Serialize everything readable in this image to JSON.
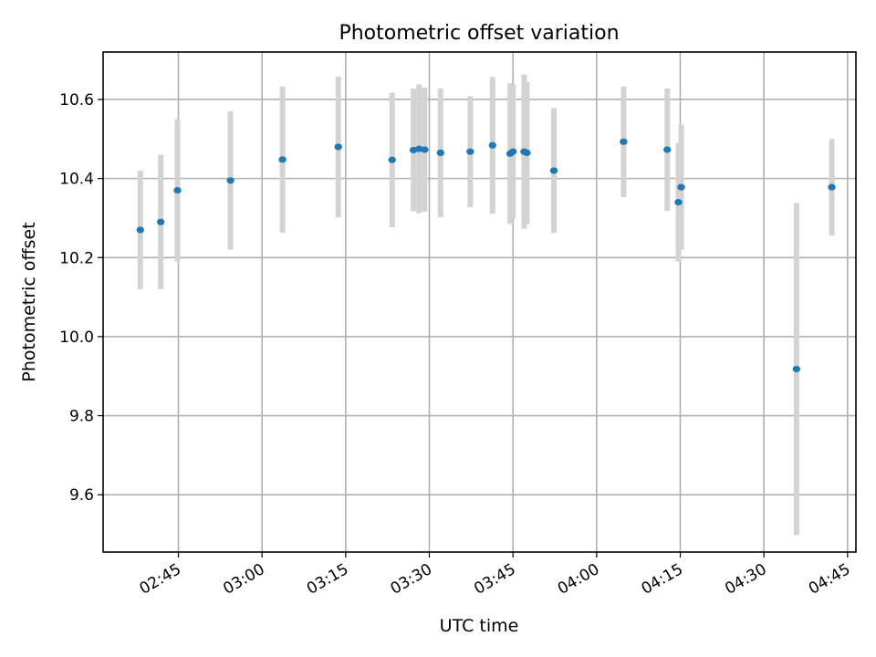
{
  "chart_data": {
    "type": "scatter",
    "title": "Photometric offset variation",
    "xlabel": "UTC time",
    "ylabel": "Photometric offset",
    "xlim": [
      "02:31:30",
      "04:46:30"
    ],
    "ylim": [
      9.455,
      10.72
    ],
    "grid": true,
    "x_ticks": [
      "02:45",
      "03:00",
      "03:15",
      "03:30",
      "03:45",
      "04:00",
      "04:15",
      "04:30",
      "04:45"
    ],
    "y_ticks": [
      "9.6",
      "9.8",
      "10.0",
      "10.2",
      "10.4",
      "10.6"
    ],
    "series": [
      {
        "marker_color": "#1f77b4",
        "errorbar_color": "#d3d3d3",
        "points": [
          {
            "x": "02:38:10",
            "y": 10.27,
            "yerr": 0.15
          },
          {
            "x": "02:41:50",
            "y": 10.29,
            "yerr": 0.17
          },
          {
            "x": "02:44:50",
            "y": 10.37,
            "yerr": 0.18
          },
          {
            "x": "02:54:20",
            "y": 10.395,
            "yerr": 0.175
          },
          {
            "x": "03:03:40",
            "y": 10.448,
            "yerr": 0.185
          },
          {
            "x": "03:13:40",
            "y": 10.48,
            "yerr": 0.178
          },
          {
            "x": "03:23:20",
            "y": 10.447,
            "yerr": 0.17
          },
          {
            "x": "03:27:10",
            "y": 10.472,
            "yerr": 0.155
          },
          {
            "x": "03:28:10",
            "y": 10.475,
            "yerr": 0.163
          },
          {
            "x": "03:29:10",
            "y": 10.473,
            "yerr": 0.157
          },
          {
            "x": "03:32:00",
            "y": 10.465,
            "yerr": 0.163
          },
          {
            "x": "03:37:20",
            "y": 10.468,
            "yerr": 0.14
          },
          {
            "x": "03:41:20",
            "y": 10.484,
            "yerr": 0.173
          },
          {
            "x": "03:44:30",
            "y": 10.463,
            "yerr": 0.178
          },
          {
            "x": "03:45:00",
            "y": 10.468,
            "yerr": 0.17
          },
          {
            "x": "03:47:00",
            "y": 10.468,
            "yerr": 0.195
          },
          {
            "x": "03:47:30",
            "y": 10.465,
            "yerr": 0.18
          },
          {
            "x": "03:52:20",
            "y": 10.42,
            "yerr": 0.158
          },
          {
            "x": "04:04:50",
            "y": 10.493,
            "yerr": 0.14
          },
          {
            "x": "04:12:40",
            "y": 10.473,
            "yerr": 0.155
          },
          {
            "x": "04:14:40",
            "y": 10.34,
            "yerr": 0.15
          },
          {
            "x": "04:15:10",
            "y": 10.378,
            "yerr": 0.158
          },
          {
            "x": "04:35:50",
            "y": 9.918,
            "yerr": 0.42
          },
          {
            "x": "04:42:10",
            "y": 10.378,
            "yerr": 0.122
          }
        ]
      }
    ]
  }
}
